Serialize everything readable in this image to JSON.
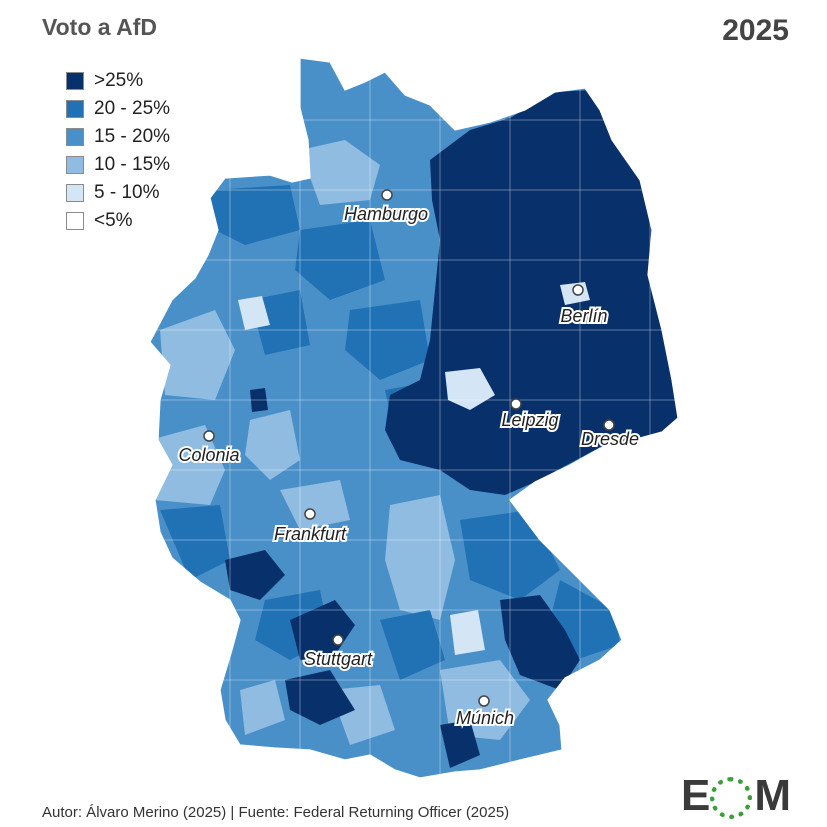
{
  "title": "Voto a AfD",
  "year": "2025",
  "legend": [
    {
      "label": ">25%",
      "color": "#08306b"
    },
    {
      "label": "20 - 25%",
      "color": "#2171b5"
    },
    {
      "label": "15 - 20%",
      "color": "#4a90c8"
    },
    {
      "label": "10 - 15%",
      "color": "#8fbce0"
    },
    {
      "label": "5 - 10%",
      "color": "#d4e5f5"
    },
    {
      "label": "<5%",
      "color": "#ffffff"
    }
  ],
  "cities": {
    "hamburgo": "Hamburgo",
    "berlin": "Berlín",
    "leipzig": "Leipzig",
    "dresde": "Dresde",
    "colonia": "Colonia",
    "frankfurt": "Frankfurt",
    "stuttgart": "Stuttgart",
    "munich": "Múnich"
  },
  "footer": "Autor: Álvaro Merino (2025) | Fuente: Federal Returning Officer (2025)",
  "logo": {
    "left": "E",
    "right": "M",
    "ring_color": "#3aa03a"
  }
}
